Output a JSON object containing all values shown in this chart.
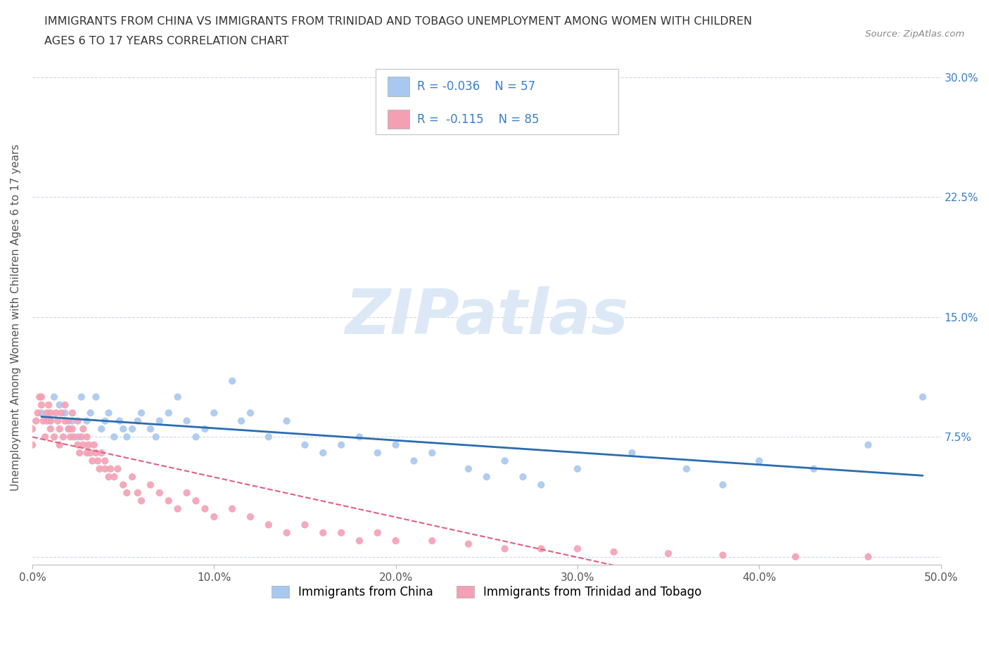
{
  "title_line1": "IMMIGRANTS FROM CHINA VS IMMIGRANTS FROM TRINIDAD AND TOBAGO UNEMPLOYMENT AMONG WOMEN WITH CHILDREN",
  "title_line2": "AGES 6 TO 17 YEARS CORRELATION CHART",
  "source_text": "Source: ZipAtlas.com",
  "ylabel": "Unemployment Among Women with Children Ages 6 to 17 years",
  "xlim": [
    0.0,
    0.5
  ],
  "ylim": [
    -0.005,
    0.305
  ],
  "xticks": [
    0.0,
    0.1,
    0.2,
    0.3,
    0.4,
    0.5
  ],
  "yticks": [
    0.0,
    0.075,
    0.15,
    0.225,
    0.3
  ],
  "xticklabels": [
    "0.0%",
    "10.0%",
    "20.0%",
    "30.0%",
    "40.0%",
    "50.0%"
  ],
  "yticklabels": [
    "",
    "7.5%",
    "15.0%",
    "22.5%",
    "30.0%"
  ],
  "color_china": "#a8c8f0",
  "color_tt": "#f4a0b4",
  "trendline_china_color": "#2b6cb0",
  "trendline_tt_color": "#e06080",
  "watermark_color": "#dce8f5",
  "legend1_label": "Immigrants from China",
  "legend2_label": "Immigrants from Trinidad and Tobago",
  "china_x": [
    0.005,
    0.01,
    0.012,
    0.015,
    0.018,
    0.02,
    0.022,
    0.025,
    0.027,
    0.03,
    0.032,
    0.035,
    0.038,
    0.04,
    0.042,
    0.045,
    0.048,
    0.05,
    0.052,
    0.055,
    0.058,
    0.06,
    0.065,
    0.068,
    0.07,
    0.075,
    0.08,
    0.085,
    0.09,
    0.095,
    0.1,
    0.11,
    0.115,
    0.12,
    0.13,
    0.14,
    0.15,
    0.16,
    0.17,
    0.18,
    0.19,
    0.2,
    0.21,
    0.22,
    0.24,
    0.25,
    0.26,
    0.27,
    0.28,
    0.3,
    0.33,
    0.36,
    0.38,
    0.4,
    0.43,
    0.46,
    0.49
  ],
  "china_y": [
    0.09,
    0.085,
    0.1,
    0.095,
    0.09,
    0.08,
    0.085,
    0.075,
    0.1,
    0.085,
    0.09,
    0.1,
    0.08,
    0.085,
    0.09,
    0.075,
    0.085,
    0.08,
    0.075,
    0.08,
    0.085,
    0.09,
    0.08,
    0.075,
    0.085,
    0.09,
    0.1,
    0.085,
    0.075,
    0.08,
    0.09,
    0.11,
    0.085,
    0.09,
    0.075,
    0.085,
    0.07,
    0.065,
    0.07,
    0.075,
    0.065,
    0.07,
    0.06,
    0.065,
    0.055,
    0.05,
    0.06,
    0.05,
    0.045,
    0.055,
    0.065,
    0.055,
    0.045,
    0.06,
    0.055,
    0.07,
    0.1
  ],
  "tt_x": [
    0.0,
    0.0,
    0.002,
    0.003,
    0.004,
    0.005,
    0.005,
    0.006,
    0.007,
    0.008,
    0.008,
    0.009,
    0.01,
    0.01,
    0.01,
    0.012,
    0.013,
    0.014,
    0.015,
    0.015,
    0.016,
    0.017,
    0.018,
    0.018,
    0.02,
    0.02,
    0.021,
    0.022,
    0.022,
    0.023,
    0.025,
    0.025,
    0.026,
    0.027,
    0.028,
    0.028,
    0.03,
    0.03,
    0.031,
    0.032,
    0.033,
    0.034,
    0.035,
    0.036,
    0.037,
    0.038,
    0.04,
    0.04,
    0.042,
    0.043,
    0.045,
    0.047,
    0.05,
    0.052,
    0.055,
    0.058,
    0.06,
    0.065,
    0.07,
    0.075,
    0.08,
    0.085,
    0.09,
    0.095,
    0.1,
    0.11,
    0.12,
    0.13,
    0.14,
    0.15,
    0.16,
    0.17,
    0.18,
    0.19,
    0.2,
    0.22,
    0.24,
    0.26,
    0.28,
    0.3,
    0.32,
    0.35,
    0.38,
    0.42,
    0.46
  ],
  "tt_y": [
    0.07,
    0.08,
    0.085,
    0.09,
    0.1,
    0.1,
    0.095,
    0.085,
    0.075,
    0.085,
    0.09,
    0.095,
    0.08,
    0.09,
    0.085,
    0.075,
    0.09,
    0.085,
    0.07,
    0.08,
    0.09,
    0.075,
    0.085,
    0.095,
    0.08,
    0.085,
    0.075,
    0.09,
    0.08,
    0.075,
    0.085,
    0.07,
    0.065,
    0.075,
    0.08,
    0.07,
    0.075,
    0.065,
    0.07,
    0.065,
    0.06,
    0.07,
    0.065,
    0.06,
    0.055,
    0.065,
    0.055,
    0.06,
    0.05,
    0.055,
    0.05,
    0.055,
    0.045,
    0.04,
    0.05,
    0.04,
    0.035,
    0.045,
    0.04,
    0.035,
    0.03,
    0.04,
    0.035,
    0.03,
    0.025,
    0.03,
    0.025,
    0.02,
    0.015,
    0.02,
    0.015,
    0.015,
    0.01,
    0.015,
    0.01,
    0.01,
    0.008,
    0.005,
    0.005,
    0.005,
    0.003,
    0.002,
    0.001,
    0.0,
    0.0
  ]
}
